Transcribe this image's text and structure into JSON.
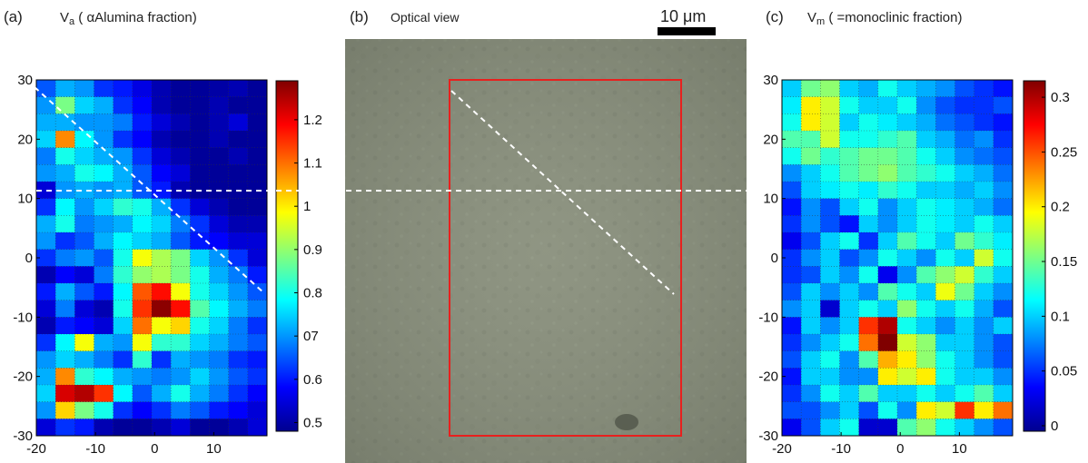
{
  "figure": {
    "panel_a": {
      "tag": "(a)",
      "title_var": "V",
      "title_sub": "a",
      "title_text": " ( αAlumina fraction)"
    },
    "panel_b": {
      "tag": "(b)",
      "title": "Optical view",
      "scale_bar_label": "10 μm"
    },
    "panel_c": {
      "tag": "(c)",
      "title_var": "V",
      "title_sub": "m",
      "title_text": " ( =monoclinic fraction)"
    }
  },
  "colors": {
    "region_box": "#e8201e",
    "dashed_line": "#ffffff",
    "grid_dot": "#333333",
    "optical_bg": "#8c9280"
  },
  "chart_data": [
    {
      "type": "heatmap",
      "panel": "a",
      "title": "V_a ( αAlumina fraction)",
      "x_range": [
        -20,
        19
      ],
      "y_range": [
        -30,
        30
      ],
      "xticks": [
        "-20",
        "-10",
        "0",
        "10"
      ],
      "xtick_values": [
        -20,
        -10,
        0,
        10
      ],
      "yticks": [
        "30",
        "20",
        "10",
        "0",
        "-10",
        "-20",
        "-30"
      ],
      "ytick_values": [
        30,
        20,
        10,
        0,
        -10,
        -20,
        -30
      ],
      "colorbar": {
        "range": [
          0.48,
          1.29
        ],
        "ticks": [
          "0.5",
          "0.6",
          "07",
          "0.8",
          "0.9",
          "1",
          "1.1",
          "1.2"
        ],
        "tick_values": [
          0.5,
          0.6,
          0.7,
          0.8,
          0.9,
          1.0,
          1.1,
          1.2
        ]
      },
      "grid": true,
      "rows_top_to_bottom": [
        [
          0.65,
          0.72,
          0.7,
          0.62,
          0.6,
          0.56,
          0.52,
          0.5,
          0.5,
          0.51,
          0.52,
          0.5
        ],
        [
          0.7,
          0.88,
          0.75,
          0.72,
          0.62,
          0.58,
          0.52,
          0.5,
          0.5,
          0.52,
          0.5,
          0.5
        ],
        [
          0.72,
          0.72,
          0.7,
          0.7,
          0.68,
          0.6,
          0.55,
          0.52,
          0.5,
          0.52,
          0.55,
          0.5
        ],
        [
          0.75,
          1.08,
          0.78,
          0.7,
          0.62,
          0.58,
          0.52,
          0.5,
          0.5,
          0.52,
          0.5,
          0.5
        ],
        [
          0.68,
          0.8,
          0.75,
          0.72,
          0.7,
          0.62,
          0.55,
          0.52,
          0.5,
          0.5,
          0.52,
          0.5
        ],
        [
          0.7,
          0.72,
          0.8,
          0.78,
          0.72,
          0.65,
          0.58,
          0.55,
          0.5,
          0.5,
          0.5,
          0.5
        ],
        [
          0.55,
          0.7,
          0.72,
          0.7,
          0.72,
          0.65,
          0.6,
          0.52,
          0.5,
          0.5,
          0.5,
          0.5
        ],
        [
          0.62,
          0.78,
          0.7,
          0.75,
          0.82,
          0.8,
          0.72,
          0.62,
          0.55,
          0.52,
          0.5,
          0.5
        ],
        [
          0.72,
          0.8,
          0.68,
          0.7,
          0.72,
          0.78,
          0.75,
          0.68,
          0.62,
          0.55,
          0.52,
          0.52
        ],
        [
          0.7,
          0.62,
          0.65,
          0.72,
          0.78,
          0.75,
          0.72,
          0.65,
          0.6,
          0.58,
          0.55,
          0.55
        ],
        [
          0.62,
          0.68,
          0.7,
          0.65,
          0.8,
          0.98,
          0.92,
          0.88,
          0.75,
          0.7,
          0.62,
          0.55
        ],
        [
          0.52,
          0.58,
          0.55,
          0.68,
          0.82,
          0.9,
          0.92,
          0.88,
          0.8,
          0.72,
          0.68,
          0.6
        ],
        [
          0.6,
          0.72,
          0.65,
          0.6,
          0.78,
          1.12,
          1.18,
          0.98,
          0.8,
          0.75,
          0.7,
          0.65
        ],
        [
          0.55,
          0.68,
          0.55,
          0.52,
          0.8,
          1.15,
          1.28,
          1.18,
          0.85,
          0.78,
          0.72,
          0.68
        ],
        [
          0.52,
          0.6,
          0.58,
          0.55,
          0.75,
          1.1,
          0.98,
          1.02,
          0.8,
          0.75,
          0.68,
          0.62
        ],
        [
          0.62,
          0.78,
          0.98,
          0.72,
          0.7,
          0.98,
          0.82,
          0.82,
          0.75,
          0.72,
          0.68,
          0.65
        ],
        [
          0.7,
          0.75,
          0.72,
          0.68,
          0.62,
          0.82,
          0.62,
          0.72,
          0.7,
          0.68,
          0.62,
          0.6
        ],
        [
          0.72,
          1.08,
          0.82,
          0.78,
          0.72,
          0.7,
          0.68,
          0.7,
          0.75,
          0.7,
          0.65,
          0.62
        ],
        [
          0.75,
          1.22,
          1.25,
          1.15,
          0.78,
          0.65,
          0.72,
          0.8,
          0.72,
          0.68,
          0.62,
          0.58
        ],
        [
          0.7,
          1.02,
          0.88,
          0.8,
          0.62,
          0.58,
          0.62,
          0.68,
          0.65,
          0.6,
          0.58,
          0.55
        ],
        [
          0.55,
          0.62,
          0.6,
          0.52,
          0.5,
          0.5,
          0.52,
          0.55,
          0.5,
          0.5,
          0.52,
          0.55
        ]
      ]
    },
    {
      "type": "heatmap",
      "panel": "c",
      "title": "V_m ( =monoclinic fraction)",
      "x_range": [
        -20,
        19
      ],
      "y_range": [
        -30,
        30
      ],
      "xticks": [
        "-20",
        "-10",
        "0",
        "10"
      ],
      "xtick_values": [
        -20,
        -10,
        0,
        10
      ],
      "yticks": [
        "30",
        "20",
        "10",
        "0",
        "-10",
        "-20",
        "-30"
      ],
      "ytick_values": [
        30,
        20,
        10,
        0,
        -10,
        -20,
        -30
      ],
      "colorbar": {
        "range": [
          -0.005,
          0.315
        ],
        "ticks": [
          "0",
          "0.05",
          "0.1",
          "0.15",
          "0.2",
          "0.25",
          "0.3"
        ],
        "tick_values": [
          0,
          0.05,
          0.1,
          0.15,
          0.2,
          0.25,
          0.3
        ]
      },
      "grid": true,
      "rows_top_to_bottom": [
        [
          0.1,
          0.15,
          0.16,
          0.1,
          0.09,
          0.12,
          0.1,
          0.09,
          0.08,
          0.06,
          0.05,
          0.04
        ],
        [
          0.11,
          0.2,
          0.18,
          0.12,
          0.1,
          0.1,
          0.12,
          0.08,
          0.06,
          0.05,
          0.05,
          0.06
        ],
        [
          0.12,
          0.2,
          0.18,
          0.1,
          0.12,
          0.11,
          0.1,
          0.09,
          0.07,
          0.06,
          0.05,
          0.04
        ],
        [
          0.14,
          0.14,
          0.18,
          0.12,
          0.12,
          0.13,
          0.14,
          0.1,
          0.09,
          0.07,
          0.08,
          0.05
        ],
        [
          0.12,
          0.15,
          0.13,
          0.14,
          0.15,
          0.15,
          0.14,
          0.12,
          0.1,
          0.08,
          0.07,
          0.06
        ],
        [
          0.08,
          0.1,
          0.12,
          0.14,
          0.15,
          0.16,
          0.14,
          0.13,
          0.12,
          0.1,
          0.09,
          0.07
        ],
        [
          0.06,
          0.1,
          0.11,
          0.12,
          0.11,
          0.13,
          0.12,
          0.1,
          0.1,
          0.09,
          0.1,
          0.08
        ],
        [
          0.04,
          0.08,
          0.06,
          0.1,
          0.12,
          0.08,
          0.1,
          0.12,
          0.11,
          0.1,
          0.09,
          0.07
        ],
        [
          0.05,
          0.08,
          0.06,
          0.04,
          0.1,
          0.08,
          0.1,
          0.12,
          0.11,
          0.1,
          0.12,
          0.1
        ],
        [
          0.03,
          0.06,
          0.1,
          0.12,
          0.05,
          0.1,
          0.14,
          0.12,
          0.1,
          0.15,
          0.13,
          0.11
        ],
        [
          0.05,
          0.08,
          0.1,
          0.06,
          0.08,
          0.12,
          0.1,
          0.08,
          0.12,
          0.1,
          0.18,
          0.12
        ],
        [
          0.05,
          0.06,
          0.1,
          0.08,
          0.12,
          0.03,
          0.08,
          0.14,
          0.16,
          0.18,
          0.13,
          0.1
        ],
        [
          0.06,
          0.1,
          0.08,
          0.1,
          0.08,
          0.14,
          0.12,
          0.1,
          0.19,
          0.15,
          0.1,
          0.08
        ],
        [
          0.08,
          0.1,
          0.02,
          0.1,
          0.12,
          0.1,
          0.16,
          0.12,
          0.1,
          0.12,
          0.09,
          0.06
        ],
        [
          0.04,
          0.1,
          0.08,
          0.1,
          0.26,
          0.3,
          0.12,
          0.1,
          0.08,
          0.1,
          0.08,
          0.1
        ],
        [
          0.05,
          0.08,
          0.1,
          0.12,
          0.24,
          0.32,
          0.18,
          0.16,
          0.1,
          0.1,
          0.08,
          0.06
        ],
        [
          0.06,
          0.1,
          0.12,
          0.08,
          0.14,
          0.22,
          0.2,
          0.16,
          0.12,
          0.1,
          0.08,
          0.06
        ],
        [
          0.04,
          0.1,
          0.1,
          0.08,
          0.08,
          0.2,
          0.18,
          0.2,
          0.12,
          0.1,
          0.1,
          0.08
        ],
        [
          0.05,
          0.08,
          0.12,
          0.1,
          0.14,
          0.1,
          0.1,
          0.12,
          0.1,
          0.12,
          0.14,
          0.1
        ],
        [
          0.06,
          0.06,
          0.08,
          0.1,
          0.06,
          0.12,
          0.08,
          0.2,
          0.18,
          0.26,
          0.2,
          0.24
        ],
        [
          0.03,
          0.06,
          0.1,
          0.12,
          0.02,
          0.02,
          0.14,
          0.16,
          0.12,
          0.1,
          0.08,
          0.06
        ]
      ]
    }
  ]
}
